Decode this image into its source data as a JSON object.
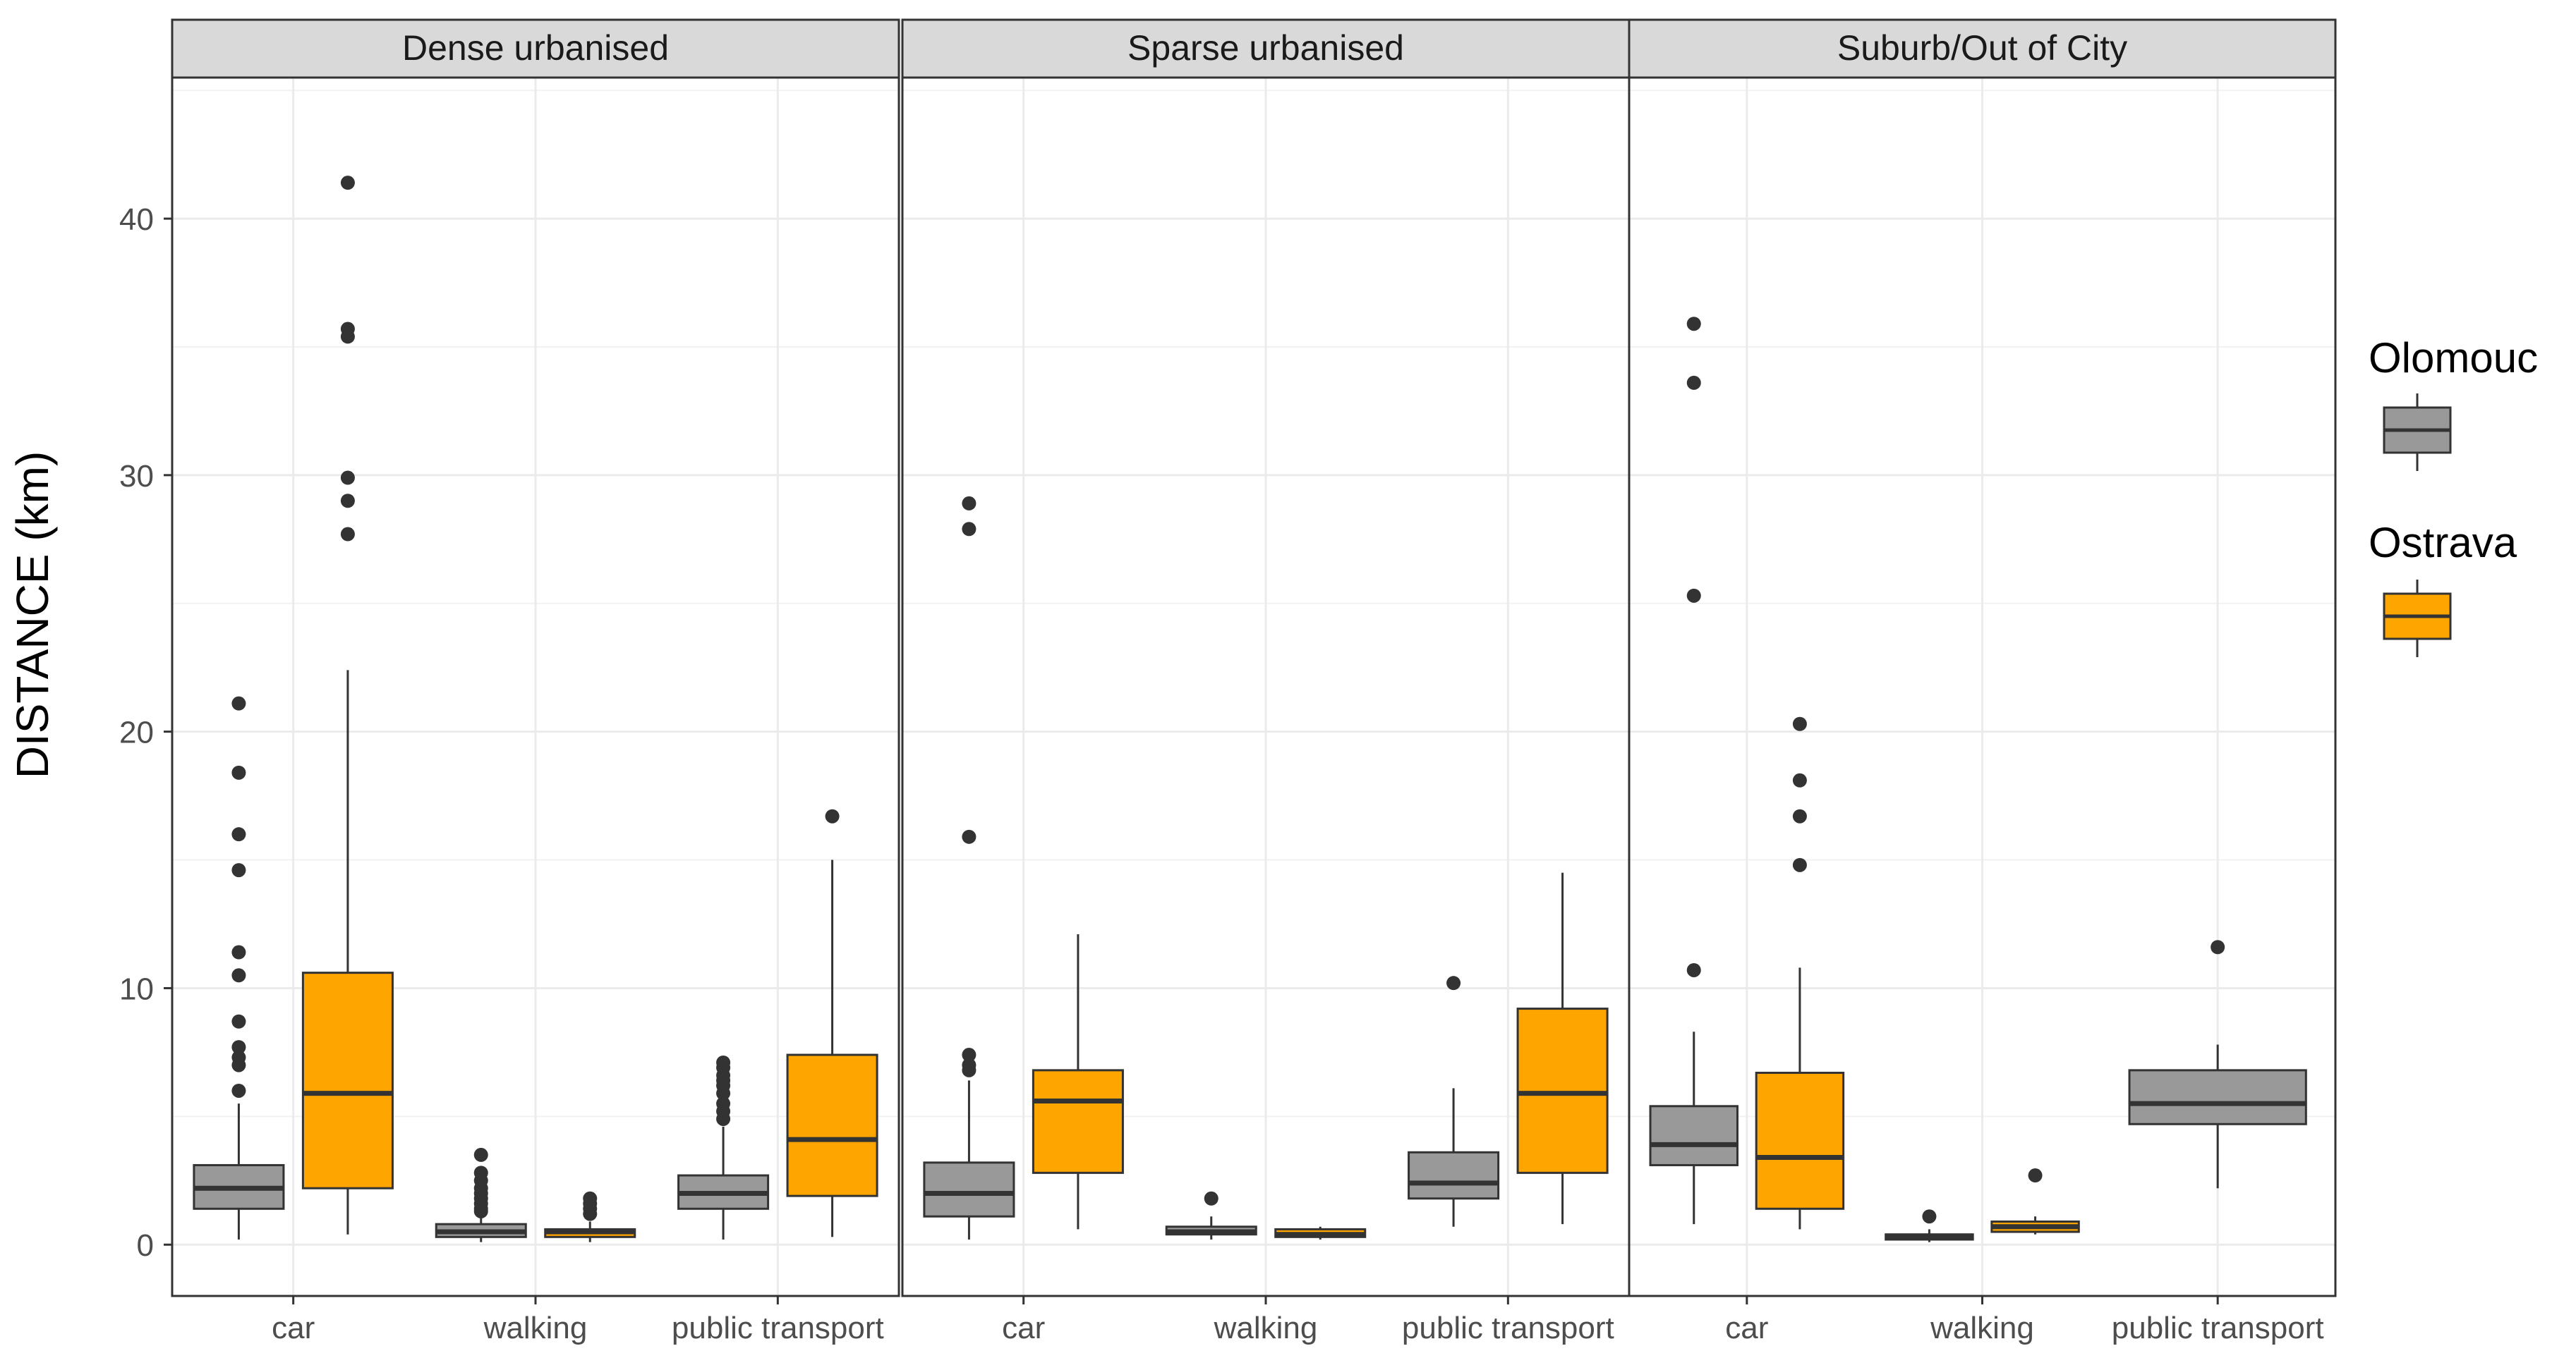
{
  "chart_data": {
    "type": "boxplot",
    "ylabel": "DISTANCE (km)",
    "xlabel": "",
    "ylim": [
      -2.0,
      45.5
    ],
    "y_ticks": [
      0,
      10,
      20,
      30,
      40
    ],
    "y_tick_labels": [
      "0",
      "10",
      "20",
      "30",
      "40"
    ],
    "grid": true,
    "categories": [
      "car",
      "walking",
      "public transport"
    ],
    "legend": {
      "placement": "right",
      "entries": [
        {
          "name": "Olomouc",
          "color": "#999999"
        },
        {
          "name": "Ostrava",
          "color": "#FFA500"
        }
      ]
    },
    "facets": [
      {
        "title": "Dense urbanised",
        "groups": [
          {
            "category": "car",
            "series": "Olomouc",
            "min": 0.2,
            "q1": 1.4,
            "median": 2.2,
            "q3": 3.1,
            "max": 5.5,
            "outliers": [
              21.1,
              18.4,
              16.0,
              14.6,
              11.4,
              10.5,
              8.7,
              7.7,
              7.3,
              7.0,
              6.0
            ]
          },
          {
            "category": "car",
            "series": "Ostrava",
            "min": 0.4,
            "q1": 2.2,
            "median": 5.9,
            "q3": 10.6,
            "max": 22.4,
            "outliers": [
              41.4,
              35.7,
              35.4,
              29.9,
              29.0,
              27.7
            ]
          },
          {
            "category": "walking",
            "series": "Olomouc",
            "min": 0.1,
            "q1": 0.3,
            "median": 0.5,
            "q3": 0.8,
            "max": 1.1,
            "outliers": [
              3.5,
              2.8,
              2.5,
              2.2,
              2.0,
              1.8,
              1.6,
              1.4,
              1.3
            ]
          },
          {
            "category": "walking",
            "series": "Ostrava",
            "min": 0.1,
            "q1": 0.3,
            "median": 0.5,
            "q3": 0.6,
            "max": 0.9,
            "outliers": [
              1.8,
              1.6,
              1.4,
              1.2
            ]
          },
          {
            "category": "public transport",
            "series": "Olomouc",
            "min": 0.2,
            "q1": 1.4,
            "median": 2.0,
            "q3": 2.7,
            "max": 4.6,
            "outliers": [
              7.1,
              6.9,
              6.6,
              6.4,
              6.2,
              5.9,
              5.5,
              5.2,
              4.9
            ]
          },
          {
            "category": "public transport",
            "series": "Ostrava",
            "min": 0.3,
            "q1": 1.9,
            "median": 4.1,
            "q3": 7.4,
            "max": 15.0,
            "outliers": [
              16.7
            ]
          }
        ]
      },
      {
        "title": "Sparse urbanised",
        "groups": [
          {
            "category": "car",
            "series": "Olomouc",
            "min": 0.2,
            "q1": 1.1,
            "median": 2.0,
            "q3": 3.2,
            "max": 6.4,
            "outliers": [
              28.9,
              27.9,
              15.9,
              7.4,
              7.0,
              6.8
            ]
          },
          {
            "category": "car",
            "series": "Ostrava",
            "min": 0.6,
            "q1": 2.8,
            "median": 5.6,
            "q3": 6.8,
            "max": 12.1,
            "outliers": []
          },
          {
            "category": "walking",
            "series": "Olomouc",
            "min": 0.2,
            "q1": 0.4,
            "median": 0.5,
            "q3": 0.7,
            "max": 1.1,
            "outliers": [
              1.8
            ]
          },
          {
            "category": "walking",
            "series": "Ostrava",
            "min": 0.2,
            "q1": 0.3,
            "median": 0.4,
            "q3": 0.6,
            "max": 0.7,
            "outliers": []
          },
          {
            "category": "public transport",
            "series": "Olomouc",
            "min": 0.7,
            "q1": 1.8,
            "median": 2.4,
            "q3": 3.6,
            "max": 6.1,
            "outliers": [
              10.2
            ]
          },
          {
            "category": "public transport",
            "series": "Ostrava",
            "min": 0.8,
            "q1": 2.8,
            "median": 5.9,
            "q3": 9.2,
            "max": 14.5,
            "outliers": []
          }
        ]
      },
      {
        "title": "Suburb/Out of City",
        "groups": [
          {
            "category": "car",
            "series": "Olomouc",
            "min": 0.8,
            "q1": 3.1,
            "median": 3.9,
            "q3": 5.4,
            "max": 8.3,
            "outliers": [
              35.9,
              33.6,
              25.3,
              10.7
            ]
          },
          {
            "category": "car",
            "series": "Ostrava",
            "min": 0.6,
            "q1": 1.4,
            "median": 3.4,
            "q3": 6.7,
            "max": 10.8,
            "outliers": [
              20.3,
              18.1,
              16.7,
              14.8
            ]
          },
          {
            "category": "walking",
            "series": "Olomouc",
            "min": 0.1,
            "q1": 0.2,
            "median": 0.3,
            "q3": 0.4,
            "max": 0.6,
            "outliers": [
              1.1
            ]
          },
          {
            "category": "walking",
            "series": "Ostrava",
            "min": 0.4,
            "q1": 0.5,
            "median": 0.7,
            "q3": 0.9,
            "max": 1.1,
            "outliers": [
              2.7
            ]
          },
          {
            "category": "public transport",
            "series": "Olomouc",
            "min": 2.2,
            "q1": 4.7,
            "median": 5.5,
            "q3": 6.8,
            "max": 7.8,
            "outliers": [
              11.6
            ]
          }
        ]
      }
    ]
  }
}
